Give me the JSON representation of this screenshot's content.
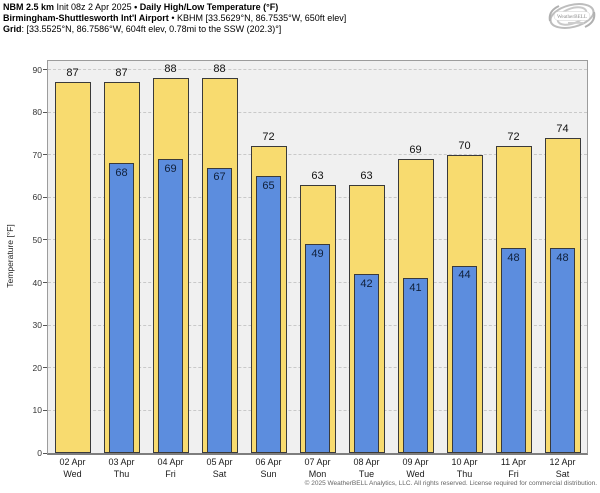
{
  "header": {
    "line1": {
      "model": "NBM 2.5 km",
      "init": " Init 08z 2 Apr 2025 ",
      "bullet": "• ",
      "product": "Daily High/Low Temperature (°F)"
    },
    "line2": {
      "station": "Birmingham-Shuttlesworth Int'l Airport",
      "bullet": " • ",
      "station_info": "KBHM [33.5629°N, 86.7535°W, 650ft elev]"
    },
    "line3": {
      "label": "Grid",
      "info": ": [33.5525°N, 86.7586°W, 604ft elev, 0.78mi to the SSW (202.3)°]"
    }
  },
  "logo": {
    "text": "WeatherBELL"
  },
  "chart_data": {
    "type": "bar",
    "title": "Daily High/Low Temperature (°F)",
    "categories": [
      {
        "date": "02 Apr",
        "day": "Wed"
      },
      {
        "date": "03 Apr",
        "day": "Thu"
      },
      {
        "date": "04 Apr",
        "day": "Fri"
      },
      {
        "date": "05 Apr",
        "day": "Sat"
      },
      {
        "date": "06 Apr",
        "day": "Sun"
      },
      {
        "date": "07 Apr",
        "day": "Mon"
      },
      {
        "date": "08 Apr",
        "day": "Tue"
      },
      {
        "date": "09 Apr",
        "day": "Wed"
      },
      {
        "date": "10 Apr",
        "day": "Thu"
      },
      {
        "date": "11 Apr",
        "day": "Fri"
      },
      {
        "date": "12 Apr",
        "day": "Sat"
      }
    ],
    "series": [
      {
        "name": "High",
        "color": "#F8DB6F",
        "values": [
          87,
          87,
          88,
          88,
          72,
          63,
          63,
          69,
          70,
          72,
          74
        ]
      },
      {
        "name": "Low",
        "color": "#5C8DDE",
        "values": [
          null,
          68,
          69,
          67,
          65,
          49,
          42,
          41,
          44,
          48,
          48
        ]
      }
    ],
    "ylabel": "Temperature [°F]",
    "yticks": [
      0,
      10,
      20,
      30,
      40,
      50,
      60,
      70,
      80,
      90
    ],
    "ylim": [
      0,
      92
    ],
    "grid": "horizontal-dashed",
    "legend": "none"
  },
  "colors": {
    "high_bar": "#F8DB6F",
    "low_bar": "#5C8DDE",
    "bar_border": "#3A3A3A",
    "plot_bg": "#F0F0F0",
    "gridline": "#C9C9C9",
    "axis_line": "#7E7E7E"
  },
  "footer": {
    "copyright": "© 2025 WeatherBELL Analytics, LLC. All rights reserved. License required for commercial distribution."
  }
}
